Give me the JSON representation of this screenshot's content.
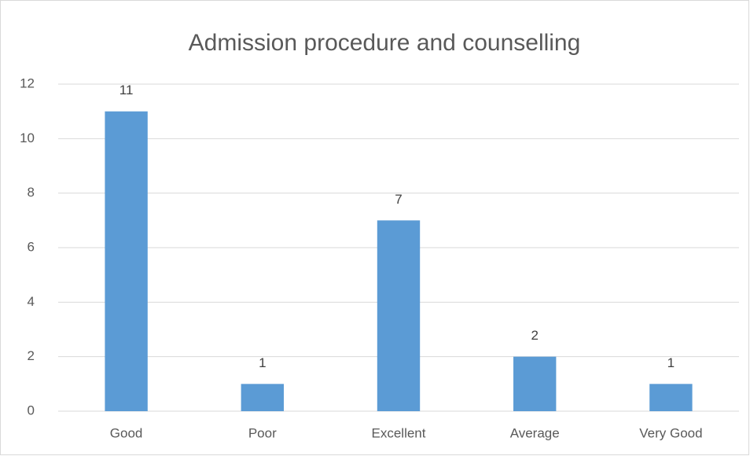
{
  "chart_data": {
    "type": "bar",
    "title": "Admission procedure and counselling",
    "categories": [
      "Good",
      "Poor",
      "Excellent",
      "Average",
      "Very Good"
    ],
    "values": [
      11,
      1,
      7,
      2,
      1
    ],
    "color": "#5b9bd5",
    "ylim": [
      0,
      12
    ],
    "yticks": [
      0,
      2,
      4,
      6,
      8,
      10,
      12
    ],
    "grid": true,
    "data_labels": true
  }
}
